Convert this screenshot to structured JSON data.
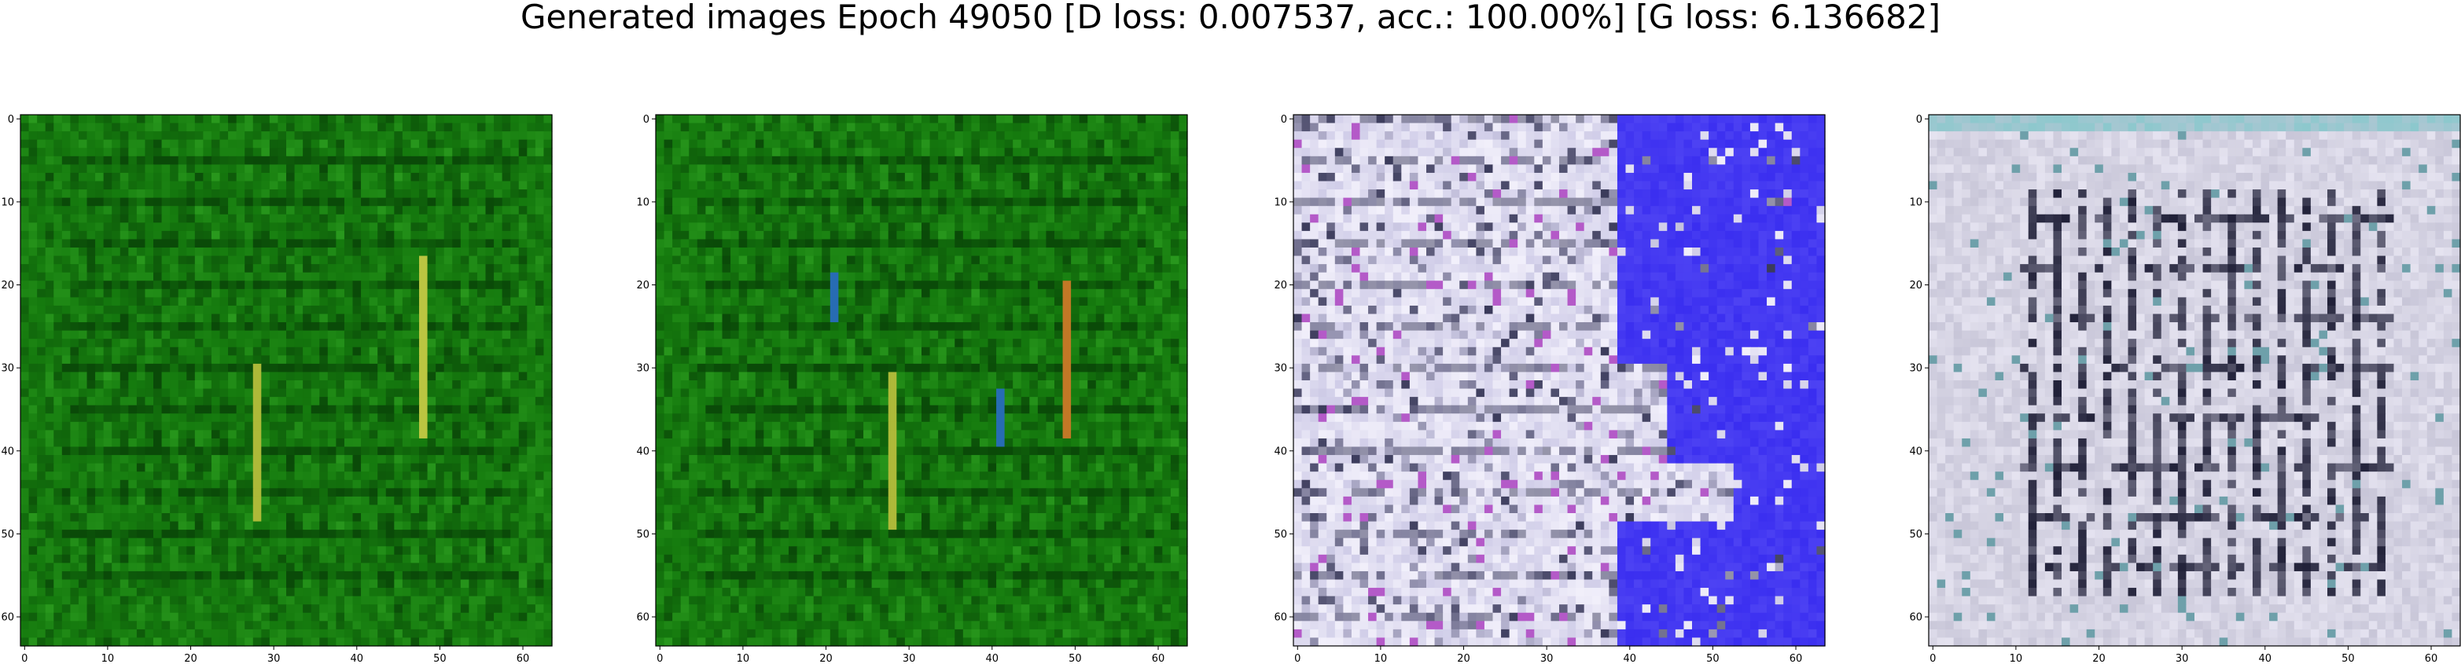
{
  "figure": {
    "title": "Generated images Epoch 49050 [D loss: 0.007537, acc.: 100.00%] [G loss: 6.136682]"
  },
  "chart_data": [
    {
      "type": "heatmap",
      "description_kind": "generated-image",
      "grid": false,
      "xlim": [
        0,
        63
      ],
      "ylim": [
        63,
        0
      ],
      "xticks": [
        "0",
        "10",
        "20",
        "30",
        "40",
        "50",
        "60"
      ],
      "yticks": [
        "0",
        "10",
        "20",
        "30",
        "40",
        "50",
        "60"
      ],
      "palette": {
        "base": "#157a0e",
        "dark": "#0a4a08",
        "light": "#2a9a1e"
      },
      "streaks": [
        {
          "x": 48,
          "y0": 17,
          "y1": 38,
          "color": "#d8d24a"
        },
        {
          "x": 28,
          "y0": 30,
          "y1": 48,
          "color": "#c8c440"
        }
      ]
    },
    {
      "type": "heatmap",
      "description_kind": "generated-image",
      "grid": false,
      "xlim": [
        0,
        63
      ],
      "ylim": [
        63,
        0
      ],
      "xticks": [
        "0",
        "10",
        "20",
        "30",
        "40",
        "50",
        "60"
      ],
      "yticks": [
        "0",
        "10",
        "20",
        "30",
        "40",
        "50",
        "60"
      ],
      "palette": {
        "base": "#157a0e",
        "dark": "#0a4a08",
        "light": "#2a9a1e"
      },
      "streaks": [
        {
          "x": 49,
          "y0": 20,
          "y1": 38,
          "color": "#e0782a"
        },
        {
          "x": 28,
          "y0": 31,
          "y1": 49,
          "color": "#c8c440"
        },
        {
          "x": 21,
          "y0": 19,
          "y1": 24,
          "color": "#2a6ad0"
        },
        {
          "x": 41,
          "y0": 33,
          "y1": 39,
          "color": "#2a6ad0"
        }
      ]
    },
    {
      "type": "heatmap",
      "description_kind": "generated-image",
      "grid": false,
      "xlim": [
        0,
        63
      ],
      "ylim": [
        63,
        0
      ],
      "xticks": [
        "0",
        "10",
        "20",
        "30",
        "40",
        "50",
        "60"
      ],
      "yticks": [
        "0",
        "10",
        "20",
        "30",
        "40",
        "50",
        "60"
      ],
      "palette": {
        "base": "#d0cde8",
        "dark": "#3a3a5a",
        "light": "#f2f0fb",
        "blue": "#3a2ef0"
      }
    },
    {
      "type": "heatmap",
      "description_kind": "generated-image",
      "grid": false,
      "xlim": [
        0,
        63
      ],
      "ylim": [
        63,
        0
      ],
      "xticks": [
        "0",
        "10",
        "20",
        "30",
        "40",
        "50",
        "60"
      ],
      "yticks": [
        "0",
        "10",
        "20",
        "30",
        "40",
        "50",
        "60"
      ],
      "palette": {
        "base": "#c8c6d8",
        "dark": "#202038",
        "light": "#eceaf6"
      }
    }
  ]
}
